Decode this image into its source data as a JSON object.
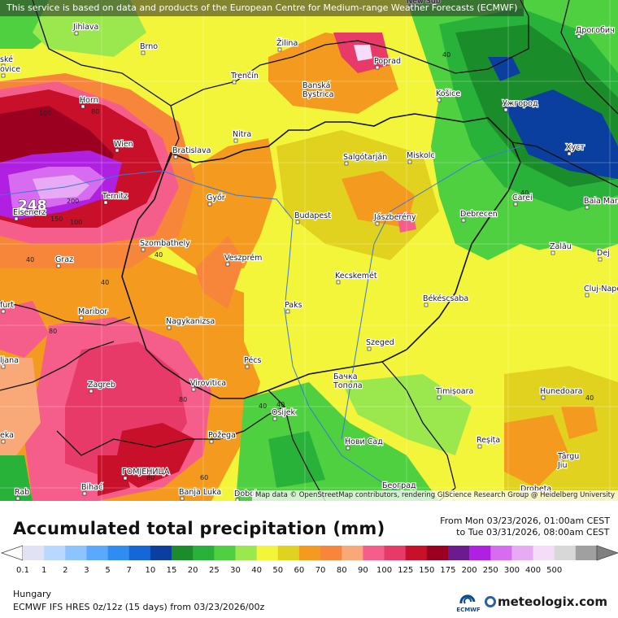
{
  "notice": "This service is based on data and products of the European Centre for Medium-range Weather Forecasts (ECMWF)",
  "attribution": "Map data © OpenStreetMap contributors, rendering GIScience Research Group @ Heidelberg University",
  "map": {
    "region": "Hungary",
    "max_value_label": "248",
    "cities": [
      {
        "name": "Jihlava"
      },
      {
        "name": "Brno"
      },
      {
        "name": "Žilina"
      },
      {
        "name": "Poprad"
      },
      {
        "name": "Дрогобич"
      },
      {
        "name": "ské"
      },
      {
        "name": "ovice"
      },
      {
        "name": "Trenčín"
      },
      {
        "name": "Banská Bystrica"
      },
      {
        "name": "Košice"
      },
      {
        "name": "Ужгород"
      },
      {
        "name": "Horn"
      },
      {
        "name": "Nitra"
      },
      {
        "name": "Wien"
      },
      {
        "name": "Bratislava"
      },
      {
        "name": "Salgótarján"
      },
      {
        "name": "Miskolc"
      },
      {
        "name": "Хуст"
      },
      {
        "name": "Győr"
      },
      {
        "name": "Carei"
      },
      {
        "name": "Baia Mare"
      },
      {
        "name": "Ternitz"
      },
      {
        "name": "Eisenerz"
      },
      {
        "name": "Budapest"
      },
      {
        "name": "Jászberény"
      },
      {
        "name": "Debrecen"
      },
      {
        "name": "Szombathely"
      },
      {
        "name": "Zalău"
      },
      {
        "name": "Dej"
      },
      {
        "name": "Graz"
      },
      {
        "name": "Veszprém"
      },
      {
        "name": "Kecskemét"
      },
      {
        "name": "Cluj-Napoca"
      },
      {
        "name": "furt"
      },
      {
        "name": "Paks"
      },
      {
        "name": "Maribor"
      },
      {
        "name": "Békéscsaba"
      },
      {
        "name": "Nagykanizsa"
      },
      {
        "name": "Szeged"
      },
      {
        "name": "Pécs"
      },
      {
        "name": "ljana"
      },
      {
        "name": "Бачка Топола"
      },
      {
        "name": "Zagreb"
      },
      {
        "name": "Virovitica"
      },
      {
        "name": "Timișoara"
      },
      {
        "name": "Hunedoara"
      },
      {
        "name": "Osijek"
      },
      {
        "name": "Požega"
      },
      {
        "name": "Нови Сад"
      },
      {
        "name": "Reșița"
      },
      {
        "name": "eka"
      },
      {
        "name": "ГОМЈЕНИЦА"
      },
      {
        "name": "Târgu Jiu"
      },
      {
        "name": "Bihać"
      },
      {
        "name": "Banja Luka"
      },
      {
        "name": "Doboj"
      },
      {
        "name": "Београд"
      },
      {
        "name": "Drobeta"
      },
      {
        "name": "Rab"
      },
      {
        "name": "New Sub"
      }
    ],
    "contour_labels": [
      "100",
      "80",
      "40",
      "40",
      "40",
      "150",
      "200",
      "100",
      "80",
      "40",
      "40",
      "80",
      "80",
      "40",
      "40",
      "60",
      "40"
    ]
  },
  "legend": {
    "title": "Accumulated total precipitation (mm)",
    "period_from": "From Mon 03/23/2026, 01:00am CEST",
    "period_to": "to Tue 03/31/2026, 08:00am CEST",
    "ticks": [
      "0.1",
      "1",
      "2",
      "3",
      "5",
      "7",
      "10",
      "15",
      "20",
      "25",
      "30",
      "40",
      "50",
      "60",
      "70",
      "80",
      "90",
      "100",
      "125",
      "150",
      "175",
      "200",
      "250",
      "300",
      "400",
      "500"
    ],
    "colors": [
      "#e2e2f5",
      "#b8d8ff",
      "#8cc4ff",
      "#5aa8ff",
      "#2f8cf0",
      "#1566d6",
      "#0a3fa0",
      "#1a8c2a",
      "#29b23a",
      "#4fd040",
      "#9ae84e",
      "#f3f53a",
      "#e0d21e",
      "#f49a1e",
      "#f7863a",
      "#f9a877",
      "#f55e8a",
      "#e83a68",
      "#c8102a",
      "#9c0020",
      "#6c1a90",
      "#b020e0",
      "#d86cf0",
      "#e8aaf4",
      "#f5dcf8",
      "#d8d8d8",
      "#a0a0a0"
    ]
  },
  "footer": {
    "region": "Hungary",
    "model": "ECMWF IFS HRES 0z/12z (15 days) from 03/23/2026/00z",
    "ecmwf_logo_text": "ECMWF",
    "brand": "meteologix.com"
  }
}
